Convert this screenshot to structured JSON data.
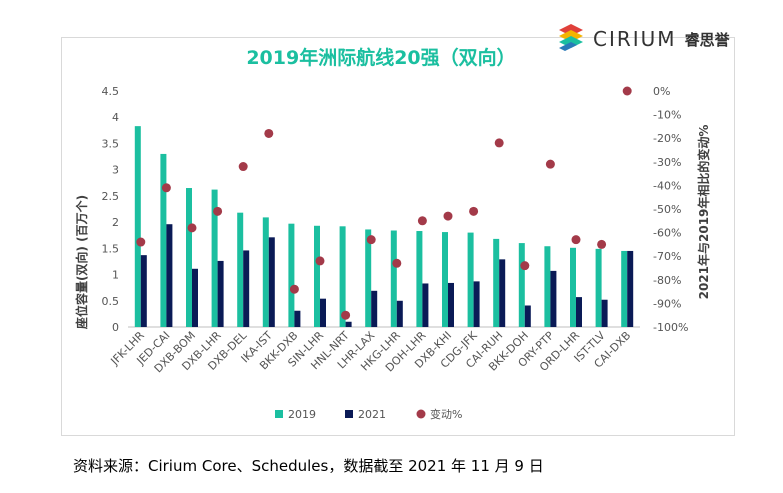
{
  "brand": {
    "name": "CIRIUM",
    "name_cn": "睿思誉"
  },
  "source_note": "资料来源：Cirium Core、Schedules，数据截至 2021 年 11 月 9 日",
  "colors": {
    "s2019": "#1bbfa0",
    "s2021": "#0a1a56",
    "change": "#a33a49",
    "title": "#1bbfa0",
    "text": "#555555",
    "grid": "#d9d9d9"
  },
  "chart_data": {
    "type": "bar",
    "title": "2019年洲际航线20强（双向）",
    "ylabel": "座位容量(双向) (百万个)",
    "y2label": "2021年与2019年相比的变动%",
    "ylim": [
      0,
      4.5
    ],
    "yticks": [
      "0",
      "0.5",
      "1",
      "1.5",
      "2",
      "2.5",
      "3",
      "3.5",
      "4",
      "4.5"
    ],
    "y2lim": [
      -100,
      0
    ],
    "y2ticks": [
      "0%",
      "-10%",
      "-20%",
      "-30%",
      "-40%",
      "-50%",
      "-60%",
      "-70%",
      "-80%",
      "-90%",
      "-100%"
    ],
    "categories": [
      "JFK-LHR",
      "JED-CAI",
      "DXB-BOM",
      "DXB-LHR",
      "DXB-DEL",
      "IKA-IST",
      "BKK-DXB",
      "SIN-LHR",
      "HNL-NRT",
      "LHR-LAX",
      "HKG-LHR",
      "DOH-LHR",
      "DXB-KHI",
      "CDG-JFK",
      "CAI-RUH",
      "BKK-DOH",
      "ORY-PTP",
      "ORD-LHR",
      "IST-TLV",
      "CAI-DXB"
    ],
    "series": [
      {
        "name": "2019",
        "values": [
          3.83,
          3.3,
          2.65,
          2.62,
          2.18,
          2.09,
          1.97,
          1.93,
          1.92,
          1.86,
          1.84,
          1.83,
          1.81,
          1.8,
          1.68,
          1.6,
          1.54,
          1.51,
          1.49,
          1.45
        ]
      },
      {
        "name": "2021",
        "values": [
          1.37,
          1.96,
          1.11,
          1.26,
          1.46,
          1.71,
          0.31,
          0.54,
          0.1,
          0.69,
          0.5,
          0.83,
          0.84,
          0.87,
          1.29,
          0.41,
          1.07,
          0.57,
          0.52,
          1.45
        ]
      },
      {
        "name": "变动%",
        "axis": "right",
        "type": "scatter",
        "values": [
          -64,
          -41,
          -58,
          -51,
          -32,
          -18,
          -84,
          -72,
          -95,
          -63,
          -73,
          -55,
          -53,
          -51,
          -22,
          -74,
          -31,
          -63,
          -65,
          0
        ]
      }
    ],
    "legend": {
      "position": "bottom",
      "entries": [
        "2019",
        "2021",
        "变动%"
      ]
    },
    "grid": false
  }
}
